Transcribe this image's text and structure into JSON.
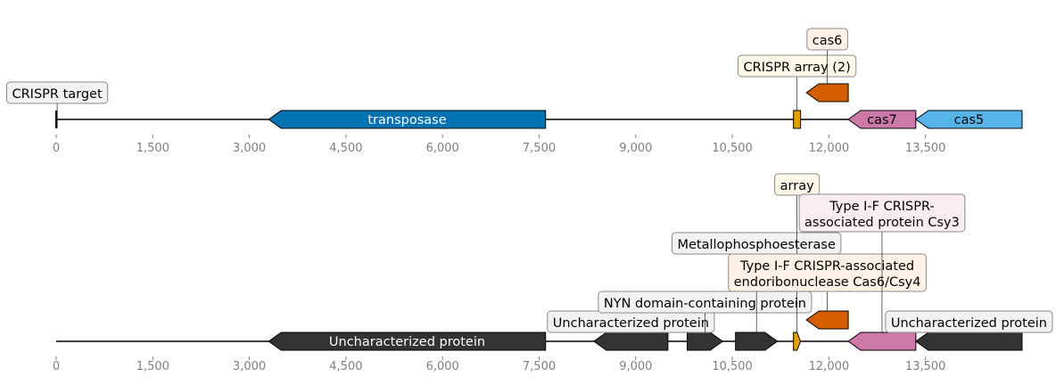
{
  "colors": {
    "backbone": "#000000",
    "tick_label": "#7f7f7f",
    "label_border": "#8a8a8a"
  },
  "tracks": [
    {
      "id": "track-1",
      "start": 0,
      "end": 15000,
      "ticks": [
        "0",
        "1,500",
        "3,000",
        "4,500",
        "6,000",
        "7,500",
        "9,000",
        "10,500",
        "12,000",
        "13,500"
      ],
      "tick_values": [
        0,
        1500,
        3000,
        4500,
        6000,
        7500,
        9000,
        10500,
        12000,
        13500
      ],
      "features": [
        {
          "name": "crispr-target",
          "label": "CRISPR target",
          "start": 0,
          "end": 30,
          "strand": 0,
          "kind": "mark",
          "color": "#000000",
          "label_bg": "#f2f2f2",
          "label_pos": "above",
          "label_level": 0
        },
        {
          "name": "transposase",
          "label": "transposase",
          "start": 3300,
          "end": 7600,
          "strand": -1,
          "kind": "gene",
          "color": "#0072b2",
          "text_color": "#ffffff",
          "label_pos": "inside"
        },
        {
          "name": "crispr-array-2",
          "label": "CRISPR array (2)",
          "start": 11450,
          "end": 11560,
          "strand": 0,
          "kind": "box",
          "color": "#e69f00",
          "label_bg": "#fff8e8",
          "label_pos": "above",
          "label_level": 1
        },
        {
          "name": "cas6",
          "label": "cas6",
          "start": 11650,
          "end": 12300,
          "strand": -1,
          "kind": "gene",
          "color": "#d55e00",
          "label_bg": "#fdf0e6",
          "label_pos": "above",
          "label_level": 2,
          "row": 1
        },
        {
          "name": "cas7",
          "label": "cas7",
          "start": 12300,
          "end": 13350,
          "strand": -1,
          "kind": "gene",
          "color": "#cc79a7",
          "text_color": "#000000",
          "label_pos": "inside"
        },
        {
          "name": "cas5",
          "label": "cas5",
          "start": 13350,
          "end": 15000,
          "strand": -1,
          "kind": "gene",
          "color": "#56b4e9",
          "text_color": "#000000",
          "label_pos": "inside"
        }
      ]
    },
    {
      "id": "track-2",
      "start": 0,
      "end": 15000,
      "ticks": [
        "0",
        "1,500",
        "3,000",
        "4,500",
        "6,000",
        "7,500",
        "9,000",
        "10,500",
        "12,000",
        "13,500"
      ],
      "tick_values": [
        0,
        1500,
        3000,
        4500,
        6000,
        7500,
        9000,
        10500,
        12000,
        13500
      ],
      "features": [
        {
          "name": "uncharacterized-protein-1",
          "label": "Uncharacterized protein",
          "start": 3300,
          "end": 7600,
          "strand": -1,
          "kind": "gene",
          "color": "#333333",
          "text_color": "#ffffff",
          "label_pos": "inside"
        },
        {
          "name": "uncharacterized-protein-2",
          "label": "Uncharacterized protein",
          "start": 8350,
          "end": 9500,
          "strand": -1,
          "kind": "gene",
          "color": "#333333",
          "label_bg": "#f2f2f2",
          "label_pos": "above",
          "label_level": 0
        },
        {
          "name": "nyn-domain-protein",
          "label": "NYN domain-containing protein",
          "start": 9800,
          "end": 10350,
          "strand": 1,
          "kind": "gene",
          "color": "#333333",
          "label_bg": "#f2f2f2",
          "label_pos": "above",
          "label_level": 1
        },
        {
          "name": "metallophosphoesterase",
          "label": "Metallophosphoesterase",
          "start": 10550,
          "end": 11200,
          "strand": 1,
          "kind": "gene",
          "color": "#333333",
          "label_bg": "#f2f2f2",
          "label_pos": "above",
          "label_level": 3
        },
        {
          "name": "array",
          "label": "array",
          "start": 11450,
          "end": 11560,
          "strand": 1,
          "kind": "gene",
          "color": "#e69f00",
          "label_bg": "#fff8e8",
          "label_pos": "above",
          "label_level": 5
        },
        {
          "name": "cas6-csy4",
          "label": "Type I-F CRISPR-associated endoribonuclease Cas6/Csy4",
          "label_lines": [
            "Type I-F CRISPR-associated",
            "endoribonuclease Cas6/Csy4"
          ],
          "start": 11650,
          "end": 12300,
          "strand": -1,
          "kind": "gene",
          "color": "#d55e00",
          "label_bg": "#fdf0e6",
          "label_pos": "above",
          "label_level": 2,
          "row": 1
        },
        {
          "name": "csy3",
          "label": "Type I-F CRISPR-associated protein Csy3",
          "label_lines": [
            "Type I-F CRISPR-",
            "associated protein Csy3"
          ],
          "start": 12300,
          "end": 13350,
          "strand": -1,
          "kind": "gene",
          "color": "#cc79a7",
          "label_bg": "#f9ecf3",
          "label_pos": "above",
          "label_level": 4
        },
        {
          "name": "uncharacterized-protein-3",
          "label": "Uncharacterized protein",
          "start": 13350,
          "end": 15000,
          "strand": -1,
          "kind": "gene",
          "color": "#333333",
          "label_bg": "#f2f2f2",
          "label_pos": "above",
          "label_level": 0
        }
      ]
    }
  ]
}
